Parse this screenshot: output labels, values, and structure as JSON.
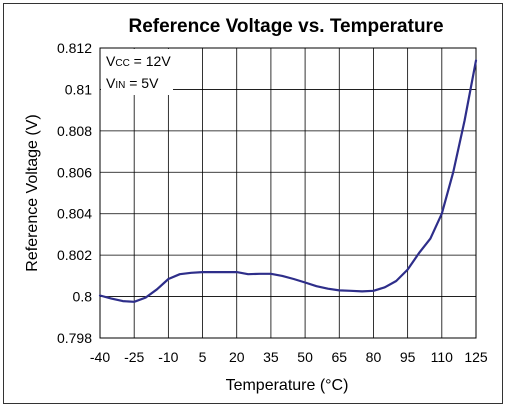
{
  "chart_data": {
    "type": "line",
    "title": "Reference Voltage vs. Temperature",
    "xlabel": "Temperature (°C)",
    "ylabel": "Reference Voltage (V)",
    "xlim": [
      -40,
      125
    ],
    "ylim": [
      0.798,
      0.812
    ],
    "x_ticks": [
      -40,
      -25,
      -10,
      5,
      20,
      35,
      50,
      65,
      80,
      95,
      110,
      125
    ],
    "x_tick_labels": [
      "-40",
      "-25",
      "-10",
      "5",
      "20",
      "35",
      "50",
      "65",
      "80",
      "95",
      "110",
      "125"
    ],
    "y_ticks": [
      0.798,
      0.8,
      0.802,
      0.804,
      0.806,
      0.808,
      0.81,
      0.812
    ],
    "y_tick_labels": [
      "0.798",
      "0.8",
      "0.802",
      "0.804",
      "0.806",
      "0.808",
      "0.81",
      "0.812"
    ],
    "grid": true,
    "line_color": "#2e2e8a",
    "annotations": [
      {
        "main": "V",
        "sub": "CC",
        "rest": " = 12V"
      },
      {
        "main": "V",
        "sub": "IN",
        "rest": " = 5V"
      }
    ],
    "series": [
      {
        "x": [
          -40,
          -35,
          -30,
          -25,
          -20,
          -15,
          -10,
          -5,
          0,
          5,
          10,
          15,
          20,
          25,
          30,
          35,
          40,
          45,
          50,
          55,
          60,
          65,
          70,
          75,
          80,
          85,
          90,
          95,
          100,
          105,
          110,
          115,
          120,
          125
        ],
        "values": [
          0.80005,
          0.7999,
          0.79978,
          0.79975,
          0.79995,
          0.80035,
          0.80085,
          0.80108,
          0.80115,
          0.80118,
          0.80118,
          0.80118,
          0.80118,
          0.80108,
          0.8011,
          0.8011,
          0.801,
          0.80085,
          0.80068,
          0.8005,
          0.80038,
          0.8003,
          0.80028,
          0.80025,
          0.80028,
          0.80045,
          0.80075,
          0.8013,
          0.8021,
          0.8028,
          0.804,
          0.806,
          0.8085,
          0.8114
        ]
      }
    ]
  }
}
